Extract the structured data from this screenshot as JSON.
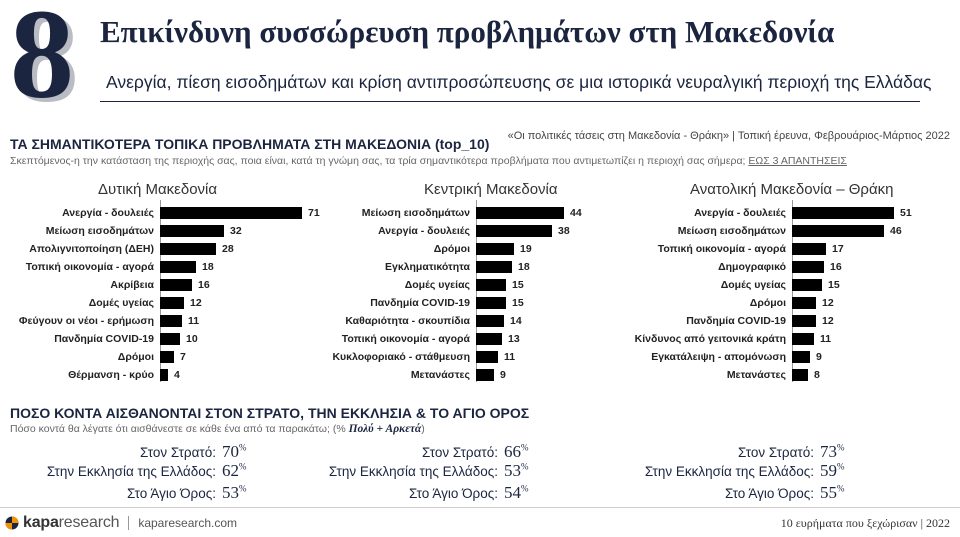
{
  "header": {
    "number": "8",
    "title": "Επικίνδυνη συσσώρευση προβλημάτων στη Μακεδονία",
    "subtitle": "Ανεργία, πίεση εισοδημάτων και κρίση αντιπροσώπευσης σε μια ιστορικά νευραλγική περιοχή της Ελλάδας"
  },
  "section1": {
    "title": "ΤΑ ΣΗΜΑΝΤΙΚΟΤΕΡΑ ΤΟΠΙΚΑ ΠΡΟΒΛΗΜΑΤΑ ΣΤΗ ΜΑΚΕΔΟΝΙΑ (top_10)",
    "source": "«Οι πολιτικές τάσεις στη Μακεδονία - Θράκη» | Τοπική έρευνα, Φεβρουάριος-Μάρτιος 2022",
    "question": "Σκεπτόμενος-η την κατάσταση της περιοχής σας, ποια είναι, κατά τη γνώμη σας, τα τρία σημαντικότερα προβλήματα που αντιμετωπίζει η περιοχή σας σήμερα;",
    "question_emph": "ΕΩΣ 3 ΑΠΑΝΤΗΣΕΙΣ"
  },
  "chart_data": [
    {
      "type": "bar",
      "orientation": "horizontal",
      "title": "Δυτική Μακεδονία",
      "categories": [
        "Ανεργία - δουλειές",
        "Μείωση εισοδημάτων",
        "Απολιγνιτοποίηση (ΔΕΗ)",
        "Τοπική οικονομία - αγορά",
        "Ακρίβεια",
        "Δομές υγείας",
        "Φεύγουν οι νέοι - ερήμωση",
        "Πανδημία COVID-19",
        "Δρόμοι",
        "Θέρμανση - κρύο"
      ],
      "values": [
        71,
        32,
        28,
        18,
        16,
        12,
        11,
        10,
        7,
        4
      ]
    },
    {
      "type": "bar",
      "orientation": "horizontal",
      "title": "Κεντρική Μακεδονία",
      "categories": [
        "Μείωση εισοδημάτων",
        "Ανεργία - δουλειές",
        "Δρόμοι",
        "Εγκληματικότητα",
        "Δομές υγείας",
        "Πανδημία COVID-19",
        "Καθαριότητα - σκουπίδια",
        "Τοπική οικονομία - αγορά",
        "Κυκλοφοριακό - στάθμευση",
        "Μετανάστες"
      ],
      "values": [
        44,
        38,
        19,
        18,
        15,
        15,
        14,
        13,
        11,
        9
      ]
    },
    {
      "type": "bar",
      "orientation": "horizontal",
      "title": "Ανατολική Μακεδονία – Θράκη",
      "categories": [
        "Ανεργία - δουλειές",
        "Μείωση εισοδημάτων",
        "Τοπική οικονομία - αγορά",
        "Δημογραφικό",
        "Δομές υγείας",
        "Δρόμοι",
        "Πανδημία COVID-19",
        "Κίνδυνος από γειτονικά κράτη",
        "Εγκατάλειψη - απομόνωση",
        "Μετανάστες"
      ],
      "values": [
        51,
        46,
        17,
        16,
        15,
        12,
        12,
        11,
        9,
        8
      ]
    }
  ],
  "section2": {
    "title": "ΠΟΣΟ ΚΟΝΤΑ ΑΙΣΘΑΝΟΝΤΑΙ ΣΤΟΝ ΣΤΡΑΤΟ, ΤΗΝ ΕΚΚΛΗΣΙΑ & ΤΟ ΑΓΙΟ ΟΡΟΣ",
    "subtitle_pre": "Πόσο κοντά θα λέγατε ότι αισθάνεστε σε κάθε ένα από τα παρακάτω; (%",
    "subtitle_emph": "Πολύ + Αρκετά",
    "subtitle_post": ")",
    "percent_sign": "%",
    "labels": [
      "Στον Στρατό:",
      "Στην Εκκλησία της Ελλάδος:",
      "Στο Άγιο Όρος:"
    ],
    "groups": [
      {
        "region": "Δυτική Μακεδονία",
        "values": [
          70,
          62,
          53
        ]
      },
      {
        "region": "Κεντρική Μακεδονία",
        "values": [
          66,
          53,
          54
        ]
      },
      {
        "region": "Ανατολική Μακεδονία – Θράκη",
        "values": [
          73,
          59,
          55
        ]
      }
    ]
  },
  "footer": {
    "logo_bold": "kapa",
    "logo_light": "research",
    "url": "kaparesearch.com",
    "right": "10 ευρήματα που ξεχώρισαν | 2022"
  },
  "colors": {
    "bar": "#000000",
    "navy": "#1b2540",
    "logo_orange": "#f39200"
  }
}
